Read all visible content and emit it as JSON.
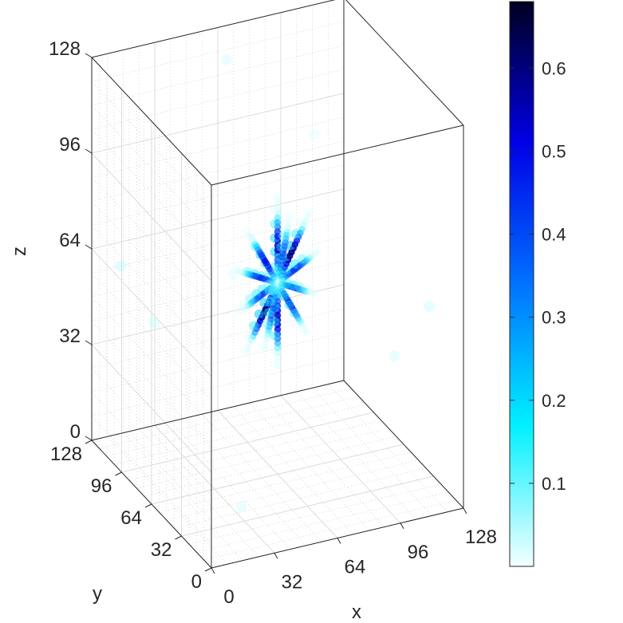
{
  "chart_data": {
    "type": "scatter3d",
    "title": "",
    "xlabel": "x",
    "ylabel": "y",
    "zlabel": "z",
    "xlim": [
      0,
      128
    ],
    "ylim": [
      0,
      128
    ],
    "zlim": [
      0,
      128
    ],
    "x_ticks": [
      "0",
      "32",
      "64",
      "96",
      "128"
    ],
    "y_ticks": [
      "0",
      "32",
      "64",
      "96",
      "128"
    ],
    "z_ticks": [
      "0",
      "32",
      "64",
      "96",
      "128"
    ],
    "grid": true,
    "colorbar": {
      "range": [
        0,
        0.68
      ],
      "ticks": [
        "0.1",
        "0.2",
        "0.3",
        "0.4",
        "0.5",
        "0.6"
      ],
      "colormap": [
        "#f5ffff",
        "#00f0ff",
        "#0072ff",
        "#0000e6",
        "#000020"
      ]
    },
    "center": [
      64,
      64,
      64
    ],
    "spokes": [
      {
        "dir": [
          0,
          0,
          1
        ],
        "length": 28,
        "peak": 0.55
      },
      {
        "dir": [
          0,
          0,
          -1
        ],
        "length": 28,
        "peak": 0.55
      },
      {
        "dir": [
          1,
          0,
          0.35
        ],
        "length": 22,
        "peak": 0.45
      },
      {
        "dir": [
          -1,
          0,
          0.35
        ],
        "length": 22,
        "peak": 0.45
      },
      {
        "dir": [
          1,
          0,
          -0.35
        ],
        "length": 20,
        "peak": 0.42
      },
      {
        "dir": [
          -1,
          0,
          -0.35
        ],
        "length": 20,
        "peak": 0.42
      },
      {
        "dir": [
          0.7,
          0,
          0.9
        ],
        "length": 26,
        "peak": 0.6
      },
      {
        "dir": [
          -0.7,
          0,
          -0.9
        ],
        "length": 26,
        "peak": 0.6
      },
      {
        "dir": [
          -0.7,
          0,
          0.9
        ],
        "length": 24,
        "peak": 0.5
      },
      {
        "dir": [
          0.7,
          0,
          -0.9
        ],
        "length": 24,
        "peak": 0.5
      },
      {
        "dir": [
          0.3,
          0,
          1
        ],
        "length": 22,
        "peak": 0.4
      },
      {
        "dir": [
          -0.3,
          0,
          -1
        ],
        "length": 22,
        "peak": 0.4
      }
    ],
    "scatter_points": [
      {
        "x": 10,
        "y": 118,
        "z": 60,
        "v": 0.06
      },
      {
        "x": 18,
        "y": 100,
        "z": 46,
        "v": 0.05
      },
      {
        "x": 120,
        "y": 20,
        "z": 62,
        "v": 0.05
      },
      {
        "x": 112,
        "y": 40,
        "z": 40,
        "v": 0.04
      },
      {
        "x": 60,
        "y": 110,
        "z": 124,
        "v": 0.04
      },
      {
        "x": 100,
        "y": 100,
        "z": 96,
        "v": 0.03
      },
      {
        "x": 20,
        "y": 10,
        "z": 14,
        "v": 0.04
      },
      {
        "x": 30,
        "y": 40,
        "z": 80,
        "v": 0.03
      }
    ]
  }
}
